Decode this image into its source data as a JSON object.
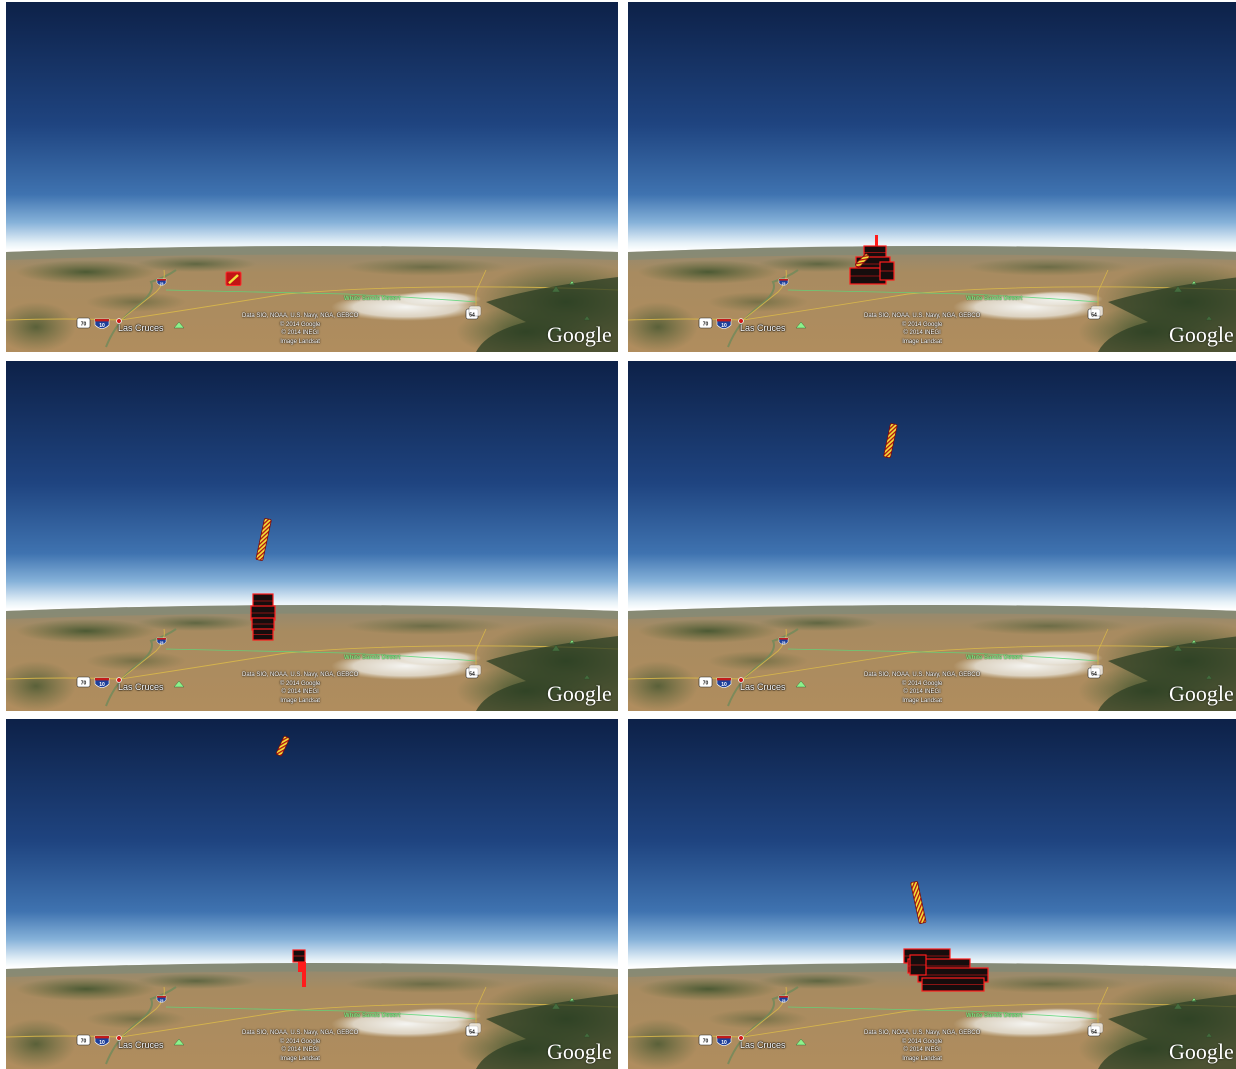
{
  "map": {
    "city_label": "Las Cruces",
    "desert_label": "White Sands Desert",
    "attribution": [
      "Data SIO, NOAA, U.S. Navy, NGA, GEBCO",
      "© 2014 Google",
      "© 2014 INEGI",
      "Image Landsat"
    ],
    "logo": "Google",
    "highway_shields": {
      "interstate_10": "10",
      "interstate_25": "25",
      "us_70": "70",
      "us_54": "54"
    }
  },
  "colors": {
    "sky_top": "#0f2550",
    "sky_mid": "#2d5a9a",
    "sky_horizon": "#f4f8fb",
    "terrain": "#a8865a",
    "terrain_green": "#3e5a2e",
    "desert_white": "#efefe9",
    "object_red": "#ff1a1a",
    "object_dark": "#1a1010",
    "object_yellow": "#f2e23a"
  },
  "panels": [
    {
      "id": "panel-1",
      "objects": [
        "ground-marker"
      ]
    },
    {
      "id": "panel-2",
      "objects": [
        "ground-stack-small",
        "ground-marker"
      ]
    },
    {
      "id": "panel-3",
      "objects": [
        "airborne-column",
        "ground-stack-tower"
      ]
    },
    {
      "id": "panel-4",
      "objects": [
        "airborne-column-high"
      ]
    },
    {
      "id": "panel-5",
      "objects": [
        "airborne-column-top",
        "ground-bar"
      ]
    },
    {
      "id": "panel-6",
      "objects": [
        "airborne-column",
        "ground-stack-wide"
      ]
    }
  ]
}
